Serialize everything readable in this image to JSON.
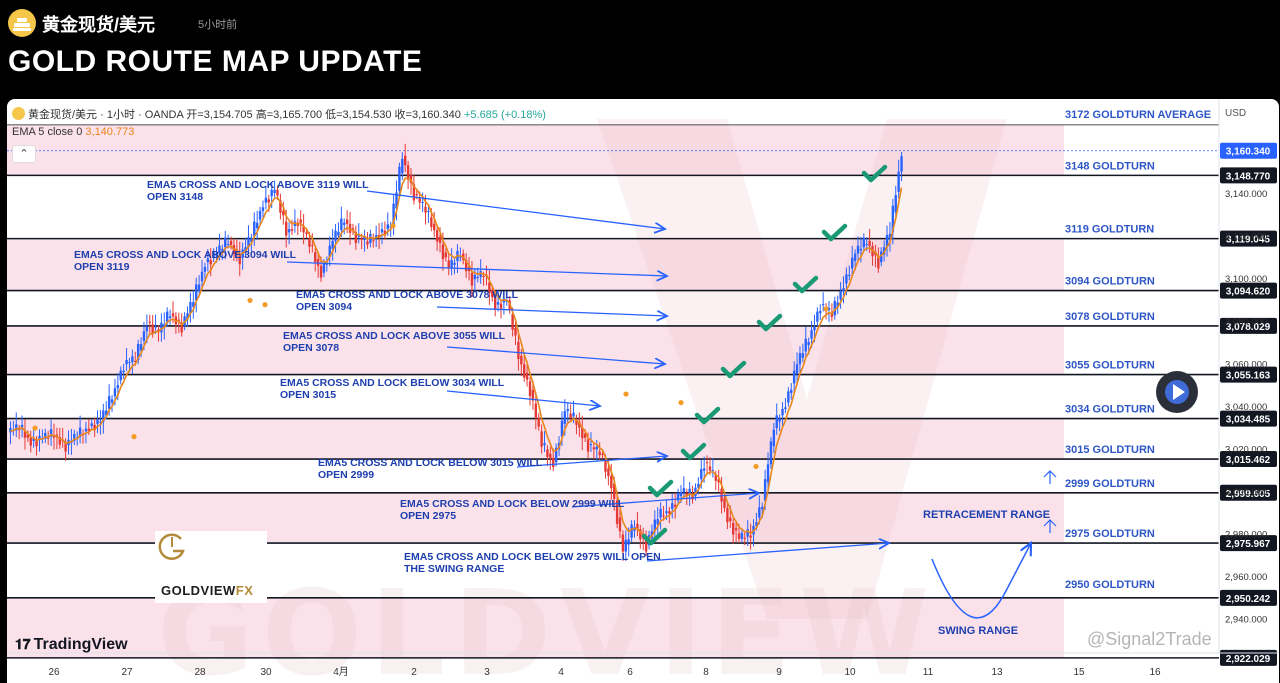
{
  "header": {
    "symbol_title": "黄金现货/美元",
    "time_ago": "5小时前",
    "post_title": "GOLD ROUTE MAP UPDATE"
  },
  "chart_header": {
    "legend": "黄金现货/美元 · 1小时 · OANDA  开=3,154.705  高=3,165.700  低=3,154.530  收=3,160.340",
    "change": "+5.685 (+0.18%)",
    "ema_label": "EMA 5 close 0",
    "ema_value": "3,140.773",
    "currency": "USD",
    "collapse_icon": "chevron-up-icon"
  },
  "branding": {
    "logo_text": "GOLDVIEW",
    "logo_fx": "FX",
    "tradingview": "TradingView",
    "signal_watermark": "@Signal2Trade",
    "watermark": "GOLDVIEW"
  },
  "colors": {
    "zone_fill": "#fbe2ea",
    "level_line": "#131722",
    "annotation_blue": "#2962ff",
    "annotation_text": "#1e3fae",
    "check_green": "#1a9a74",
    "ema_orange": "#e8861c",
    "bull": "#2962ff",
    "bear": "#e53935"
  },
  "chart_data": {
    "type": "candlestick",
    "title": "",
    "instrument": "黄金现货/美元 · 1小时 · OANDA",
    "ylim": [
      2921,
      3176
    ],
    "price_axis_ticks": [
      "3,140.000",
      "3,120.000",
      "3,100.000",
      "3,080.000",
      "3,060.000",
      "3,040.000",
      "3,020.000",
      "3,000.000",
      "2,980.000",
      "2,960.000",
      "2,940.000"
    ],
    "price_axis_tick_values": [
      3140,
      3120,
      3100,
      3080,
      3060,
      3040,
      3020,
      3000,
      2980,
      2960,
      2940
    ],
    "x_ticks": [
      "26",
      "27",
      "28",
      "30",
      "4月",
      "2",
      "3",
      "4",
      "6",
      "8",
      "9",
      "10",
      "11",
      "13",
      "15",
      "16"
    ],
    "last_price": {
      "label": "3,160.340",
      "value": 3160.34
    },
    "levels": [
      {
        "name": "3172 GOLDTURN AVERAGE",
        "value": 3172.5,
        "price_label": ""
      },
      {
        "name": "3148 GOLDTURN",
        "value": 3148.77,
        "price_label": "3,148.770"
      },
      {
        "name": "3119 GOLDTURN",
        "value": 3119.045,
        "price_label": "3,119.045"
      },
      {
        "name": "3094 GOLDTURN",
        "value": 3094.62,
        "price_label": "3,094.620"
      },
      {
        "name": "3078 GOLDTURN",
        "value": 3078.029,
        "price_label": "3,078.029"
      },
      {
        "name": "3055 GOLDTURN",
        "value": 3055.163,
        "price_label": "3,055.163"
      },
      {
        "name": "3034 GOLDTURN",
        "value": 3034.485,
        "price_label": "3,034.485"
      },
      {
        "name": "3015 GOLDTURN",
        "value": 3015.462,
        "price_label": "3,015.462"
      },
      {
        "name": "2999 GOLDTURN",
        "value": 2999.605,
        "price_label": "2,999.605"
      },
      {
        "name": "2975 GOLDTURN",
        "value": 2975.967,
        "price_label": "2,975.967"
      },
      {
        "name": "2950 GOLDTURN",
        "value": 2950.242,
        "price_label": "2,950.242"
      },
      {
        "name": "",
        "value": 2922.029,
        "price_label": "2,922.029"
      }
    ],
    "annotations": [
      {
        "line1": "EMA5 CROSS AND LOCK ABOVE 3119 WILL",
        "line2": "OPEN 3148"
      },
      {
        "line1": "EMA5 CROSS AND LOCK ABOVE 3094 WILL",
        "line2": "OPEN 3119"
      },
      {
        "line1": "EMA5 CROSS AND LOCK ABOVE 3078 WILL",
        "line2": "OPEN 3094"
      },
      {
        "line1": "EMA5 CROSS AND LOCK ABOVE 3055 WILL",
        "line2": "OPEN 3078"
      },
      {
        "line1": "EMA5 CROSS AND LOCK BELOW 3034 WILL",
        "line2": "OPEN 3015"
      },
      {
        "line1": "EMA5 CROSS AND LOCK BELOW 3015 WILL",
        "line2": "OPEN 2999"
      },
      {
        "line1": "EMA5 CROSS AND LOCK BELOW 2999 WILL",
        "line2": "OPEN 2975"
      },
      {
        "line1": "EMA5 CROSS AND LOCK BELOW 2975 WILL OPEN",
        "line2": "THE SWING RANGE"
      }
    ],
    "range_labels": [
      "RETRACEMENT RANGE",
      "SWING RANGE"
    ],
    "price_path": [
      3028,
      3030,
      3024,
      3025,
      3027,
      3022,
      3026,
      3031,
      3033,
      3045,
      3060,
      3062,
      3080,
      3075,
      3084,
      3078,
      3090,
      3108,
      3112,
      3118,
      3110,
      3120,
      3136,
      3142,
      3122,
      3128,
      3116,
      3103,
      3118,
      3128,
      3120,
      3117,
      3122,
      3125,
      3158,
      3140,
      3132,
      3120,
      3105,
      3112,
      3100,
      3102,
      3088,
      3090,
      3064,
      3048,
      3022,
      3014,
      3038,
      3033,
      3022,
      3018,
      3004,
      2972,
      2985,
      2975,
      2988,
      2992,
      3000,
      2998,
      3014,
      3006,
      2988,
      2978,
      2980,
      2996,
      3030,
      3042,
      3060,
      3072,
      3088,
      3083,
      3098,
      3112,
      3118,
      3108,
      3122,
      3160
    ]
  }
}
